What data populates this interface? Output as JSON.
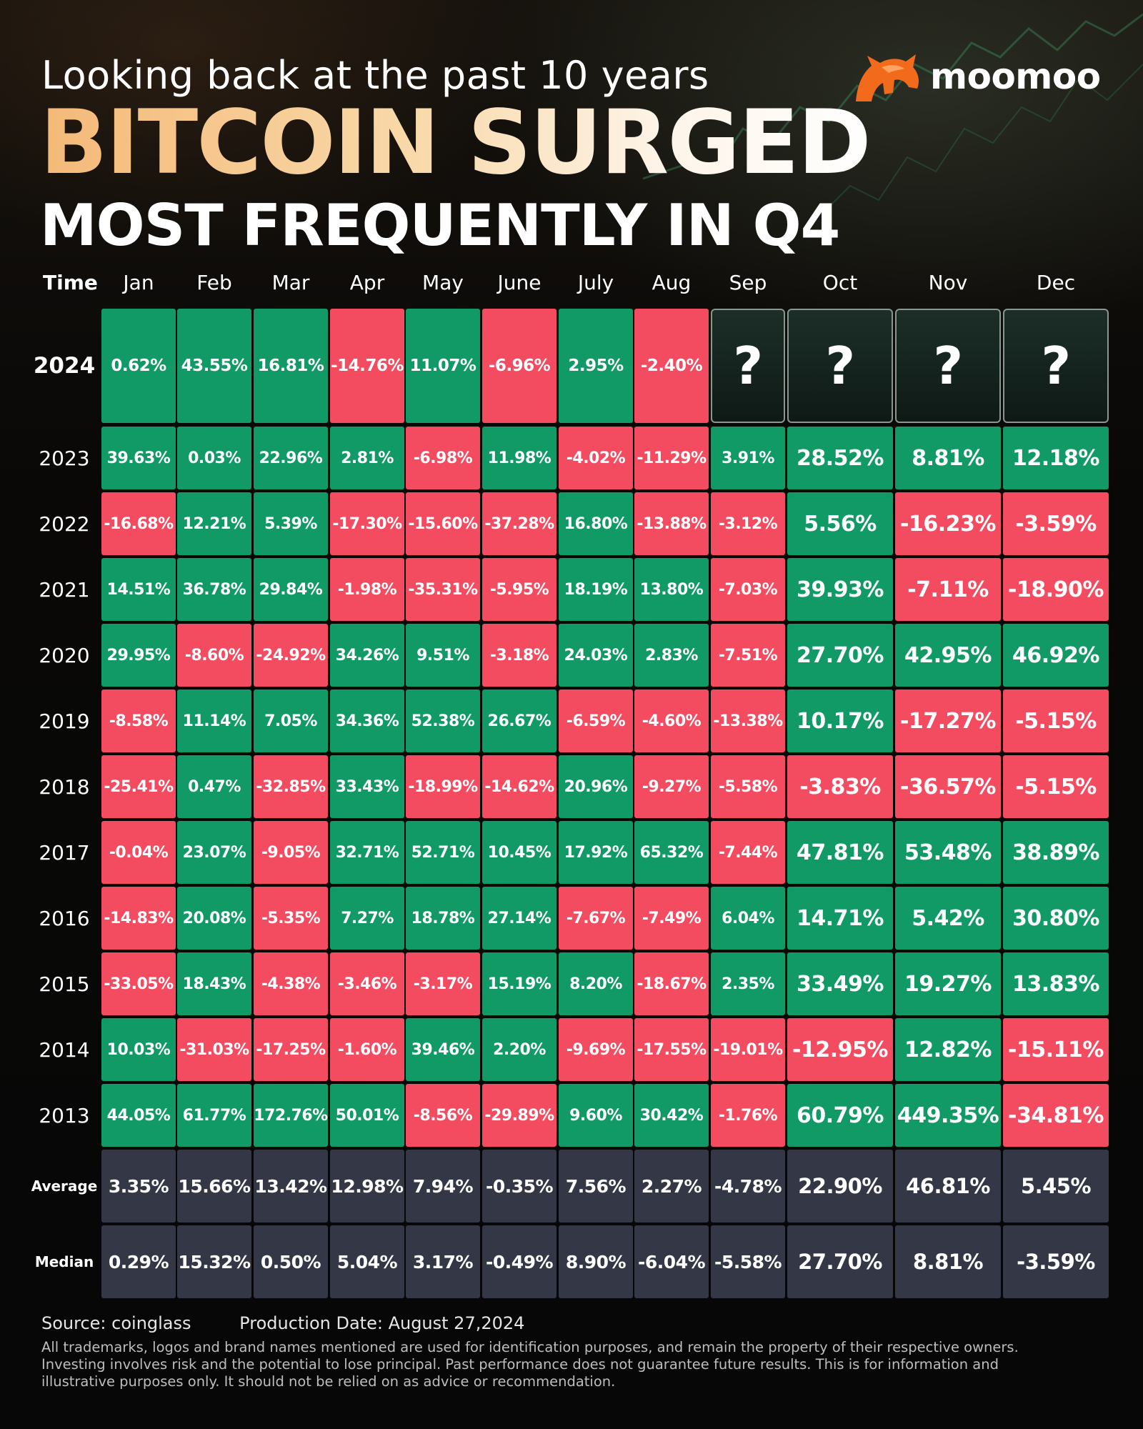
{
  "header": {
    "subtitle": "Looking back at the past 10 years",
    "title_line1": "BITCOIN SURGED",
    "title_line2": "MOST FREQUENTLY IN Q4",
    "brand": "moomoo"
  },
  "footer": {
    "source": "Source: coinglass",
    "production_date": "Production Date: August 27,2024",
    "disclaimer_lines": [
      "All trademarks, logos and brand names mentioned are used for identification purposes, and remain the property of their respective owners.",
      "Investing involves risk and the potential to lose principal. Past performance does not guarantee future results. This is for information and",
      "illustrative purposes only. It should not be relied on as advice or recommendation."
    ]
  },
  "colors": {
    "positive": "#129a66",
    "negative": "#f34b60",
    "summary": "#343846",
    "brand_orange": "#f26b1d"
  },
  "icons": {
    "brand_logo": "moomoo-bull-logo"
  },
  "chart_data": {
    "type": "table",
    "corner_label": "Time",
    "columns": [
      "Jan",
      "Feb",
      "Mar",
      "Apr",
      "May",
      "June",
      "July",
      "Aug",
      "Sep",
      "Oct",
      "Nov",
      "Dec"
    ],
    "rows": [
      {
        "label": "2024",
        "values": [
          "0.62%",
          "43.55%",
          "16.81%",
          "-14.76%",
          "11.07%",
          "-6.96%",
          "2.95%",
          "-2.40%",
          "?",
          "?",
          "?",
          "?"
        ]
      },
      {
        "label": "2023",
        "values": [
          "39.63%",
          "0.03%",
          "22.96%",
          "2.81%",
          "-6.98%",
          "11.98%",
          "-4.02%",
          "-11.29%",
          "3.91%",
          "28.52%",
          "8.81%",
          "12.18%"
        ]
      },
      {
        "label": "2022",
        "values": [
          "-16.68%",
          "12.21%",
          "5.39%",
          "-17.30%",
          "-15.60%",
          "-37.28%",
          "16.80%",
          "-13.88%",
          "-3.12%",
          "5.56%",
          "-16.23%",
          "-3.59%"
        ]
      },
      {
        "label": "2021",
        "values": [
          "14.51%",
          "36.78%",
          "29.84%",
          "-1.98%",
          "-35.31%",
          "-5.95%",
          "18.19%",
          "13.80%",
          "-7.03%",
          "39.93%",
          "-7.11%",
          "-18.90%"
        ]
      },
      {
        "label": "2020",
        "values": [
          "29.95%",
          "-8.60%",
          "-24.92%",
          "34.26%",
          "9.51%",
          "-3.18%",
          "24.03%",
          "2.83%",
          "-7.51%",
          "27.70%",
          "42.95%",
          "46.92%"
        ]
      },
      {
        "label": "2019",
        "values": [
          "-8.58%",
          "11.14%",
          "7.05%",
          "34.36%",
          "52.38%",
          "26.67%",
          "-6.59%",
          "-4.60%",
          "-13.38%",
          "10.17%",
          "-17.27%",
          "-5.15%"
        ]
      },
      {
        "label": "2018",
        "values": [
          "-25.41%",
          "0.47%",
          "-32.85%",
          "33.43%",
          "-18.99%",
          "-14.62%",
          "20.96%",
          "-9.27%",
          "-5.58%",
          "-3.83%",
          "-36.57%",
          "-5.15%"
        ]
      },
      {
        "label": "2017",
        "values": [
          "-0.04%",
          "23.07%",
          "-9.05%",
          "32.71%",
          "52.71%",
          "10.45%",
          "17.92%",
          "65.32%",
          "-7.44%",
          "47.81%",
          "53.48%",
          "38.89%"
        ]
      },
      {
        "label": "2016",
        "values": [
          "-14.83%",
          "20.08%",
          "-5.35%",
          "7.27%",
          "18.78%",
          "27.14%",
          "-7.67%",
          "-7.49%",
          "6.04%",
          "14.71%",
          "5.42%",
          "30.80%"
        ]
      },
      {
        "label": "2015",
        "values": [
          "-33.05%",
          "18.43%",
          "-4.38%",
          "-3.46%",
          "-3.17%",
          "15.19%",
          "8.20%",
          "-18.67%",
          "2.35%",
          "33.49%",
          "19.27%",
          "13.83%"
        ]
      },
      {
        "label": "2014",
        "values": [
          "10.03%",
          "-31.03%",
          "-17.25%",
          "-1.60%",
          "39.46%",
          "2.20%",
          "-9.69%",
          "-17.55%",
          "-19.01%",
          "-12.95%",
          "12.82%",
          "-15.11%"
        ]
      },
      {
        "label": "2013",
        "values": [
          "44.05%",
          "61.77%",
          "172.76%",
          "50.01%",
          "-8.56%",
          "-29.89%",
          "9.60%",
          "30.42%",
          "-1.76%",
          "60.79%",
          "449.35%",
          "-34.81%"
        ]
      }
    ],
    "summary_rows": [
      {
        "label": "Average",
        "values": [
          "3.35%",
          "15.66%",
          "13.42%",
          "12.98%",
          "7.94%",
          "-0.35%",
          "7.56%",
          "2.27%",
          "-4.78%",
          "22.90%",
          "46.81%",
          "5.45%"
        ]
      },
      {
        "label": "Median",
        "values": [
          "0.29%",
          "15.32%",
          "0.50%",
          "5.04%",
          "3.17%",
          "-0.49%",
          "8.90%",
          "-6.04%",
          "-5.58%",
          "27.70%",
          "8.81%",
          "-3.59%"
        ]
      }
    ]
  }
}
